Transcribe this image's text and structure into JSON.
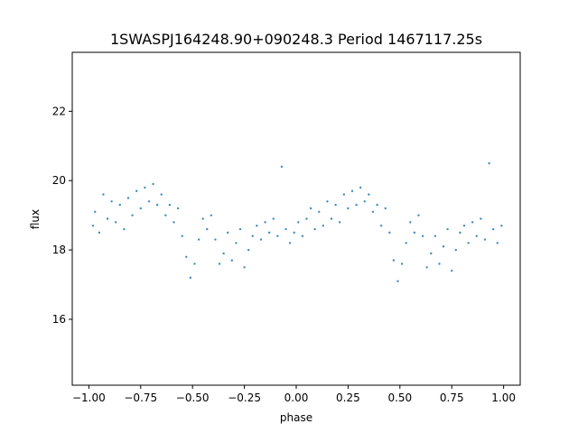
{
  "chart_data": {
    "type": "scatter",
    "title": "1SWASPJ164248.90+090248.3 Period 1467117.25s",
    "xlabel": "phase",
    "ylabel": "flux",
    "xlim": [
      -1.08,
      1.08
    ],
    "ylim": [
      14.1,
      23.7
    ],
    "xticks": [
      -1.0,
      -0.75,
      -0.5,
      -0.25,
      0.0,
      0.25,
      0.5,
      0.75,
      1.0
    ],
    "xtick_labels": [
      "−1.00",
      "−0.75",
      "−0.50",
      "−0.25",
      "0.00",
      "0.25",
      "0.50",
      "0.75",
      "1.00"
    ],
    "yticks": [
      16,
      18,
      20,
      22
    ],
    "ytick_labels": [
      "16",
      "18",
      "20",
      "22"
    ],
    "grid": false,
    "marker_color": "#1f77b4",
    "series": [
      {
        "description_of_shape": "phase-folded light curve repeated twice",
        "points": [
          [
            -0.98,
            18.7
          ],
          [
            -0.97,
            19.1
          ],
          [
            -0.95,
            18.5
          ],
          [
            -0.93,
            19.6
          ],
          [
            -0.91,
            18.9
          ],
          [
            -0.89,
            19.4
          ],
          [
            -0.87,
            18.8
          ],
          [
            -0.85,
            19.3
          ],
          [
            -0.83,
            18.6
          ],
          [
            -0.81,
            19.5
          ],
          [
            -0.79,
            19.0
          ],
          [
            -0.77,
            19.7
          ],
          [
            -0.75,
            19.2
          ],
          [
            -0.73,
            19.8
          ],
          [
            -0.71,
            19.4
          ],
          [
            -0.69,
            19.9
          ],
          [
            -0.67,
            19.3
          ],
          [
            -0.65,
            19.6
          ],
          [
            -0.63,
            19.0
          ],
          [
            -0.61,
            19.3
          ],
          [
            -0.59,
            18.8
          ],
          [
            -0.57,
            19.2
          ],
          [
            -0.55,
            18.4
          ],
          [
            -0.53,
            17.8
          ],
          [
            -0.51,
            17.2
          ],
          [
            -0.49,
            17.6
          ],
          [
            -0.47,
            18.3
          ],
          [
            -0.45,
            18.9
          ],
          [
            -0.43,
            18.6
          ],
          [
            -0.41,
            19.0
          ],
          [
            -0.39,
            18.3
          ],
          [
            -0.37,
            17.6
          ],
          [
            -0.35,
            17.9
          ],
          [
            -0.33,
            18.5
          ],
          [
            -0.31,
            17.7
          ],
          [
            -0.29,
            18.2
          ],
          [
            -0.27,
            18.6
          ],
          [
            -0.25,
            17.5
          ],
          [
            -0.23,
            18.0
          ],
          [
            -0.21,
            18.4
          ],
          [
            -0.19,
            18.7
          ],
          [
            -0.17,
            18.3
          ],
          [
            -0.15,
            18.8
          ],
          [
            -0.13,
            18.5
          ],
          [
            -0.11,
            18.9
          ],
          [
            -0.09,
            18.4
          ],
          [
            -0.07,
            20.4
          ],
          [
            -0.05,
            18.6
          ],
          [
            -0.03,
            18.2
          ],
          [
            -0.01,
            18.5
          ],
          [
            0.01,
            18.8
          ],
          [
            0.03,
            18.4
          ],
          [
            0.05,
            18.9
          ],
          [
            0.07,
            19.2
          ],
          [
            0.09,
            18.6
          ],
          [
            0.11,
            19.1
          ],
          [
            0.13,
            18.7
          ],
          [
            0.15,
            19.4
          ],
          [
            0.17,
            18.9
          ],
          [
            0.19,
            19.3
          ],
          [
            0.21,
            18.8
          ],
          [
            0.23,
            19.6
          ],
          [
            0.25,
            19.2
          ],
          [
            0.27,
            19.7
          ],
          [
            0.29,
            19.3
          ],
          [
            0.31,
            19.8
          ],
          [
            0.33,
            19.4
          ],
          [
            0.35,
            19.6
          ],
          [
            0.37,
            19.1
          ],
          [
            0.39,
            19.3
          ],
          [
            0.41,
            18.7
          ],
          [
            0.43,
            19.2
          ],
          [
            0.45,
            18.5
          ],
          [
            0.47,
            17.7
          ],
          [
            0.49,
            17.1
          ],
          [
            0.51,
            17.6
          ],
          [
            0.53,
            18.2
          ],
          [
            0.55,
            18.8
          ],
          [
            0.57,
            18.5
          ],
          [
            0.59,
            19.0
          ],
          [
            0.61,
            18.4
          ],
          [
            0.63,
            17.5
          ],
          [
            0.65,
            17.9
          ],
          [
            0.67,
            18.4
          ],
          [
            0.69,
            17.6
          ],
          [
            0.71,
            18.1
          ],
          [
            0.73,
            18.6
          ],
          [
            0.75,
            17.4
          ],
          [
            0.77,
            18.0
          ],
          [
            0.79,
            18.5
          ],
          [
            0.81,
            18.7
          ],
          [
            0.83,
            18.2
          ],
          [
            0.85,
            18.8
          ],
          [
            0.87,
            18.4
          ],
          [
            0.89,
            18.9
          ],
          [
            0.91,
            18.3
          ],
          [
            0.93,
            20.5
          ],
          [
            0.95,
            18.6
          ],
          [
            0.97,
            18.2
          ],
          [
            0.99,
            18.7
          ]
        ]
      }
    ]
  }
}
